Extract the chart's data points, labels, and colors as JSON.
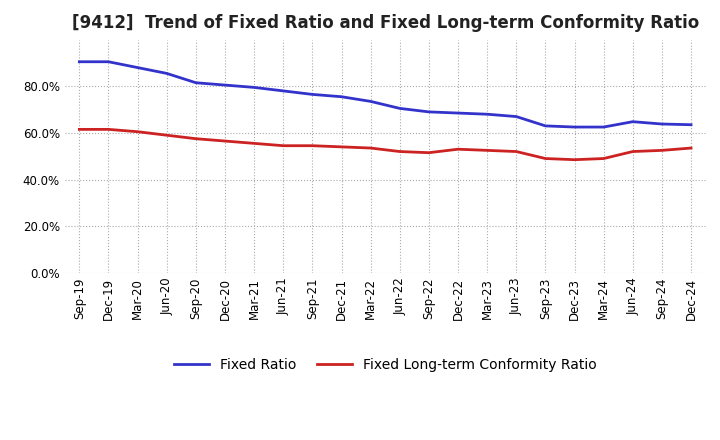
{
  "title": "[9412]  Trend of Fixed Ratio and Fixed Long-term Conformity Ratio",
  "x_labels": [
    "Sep-19",
    "Dec-19",
    "Mar-20",
    "Jun-20",
    "Sep-20",
    "Dec-20",
    "Mar-21",
    "Jun-21",
    "Sep-21",
    "Dec-21",
    "Mar-22",
    "Jun-22",
    "Sep-22",
    "Dec-22",
    "Mar-23",
    "Jun-23",
    "Sep-23",
    "Dec-23",
    "Mar-24",
    "Jun-24",
    "Sep-24",
    "Dec-24"
  ],
  "fixed_ratio": [
    0.905,
    0.905,
    0.88,
    0.855,
    0.815,
    0.805,
    0.795,
    0.78,
    0.765,
    0.755,
    0.735,
    0.705,
    0.69,
    0.685,
    0.68,
    0.67,
    0.63,
    0.625,
    0.625,
    0.648,
    0.638,
    0.635
  ],
  "fixed_lt_ratio": [
    0.615,
    0.615,
    0.605,
    0.59,
    0.575,
    0.565,
    0.555,
    0.545,
    0.545,
    0.54,
    0.535,
    0.52,
    0.515,
    0.53,
    0.525,
    0.52,
    0.49,
    0.485,
    0.49,
    0.52,
    0.525,
    0.535
  ],
  "fixed_ratio_color": "#3333cc",
  "fixed_lt_ratio_color": "#cc2222",
  "ylim": [
    0.0,
    1.0
  ],
  "yticks": [
    0.0,
    0.2,
    0.4,
    0.6,
    0.8
  ],
  "background_color": "#ffffff",
  "grid_color": "#aaaaaa",
  "title_fontsize": 12,
  "legend_fontsize": 10,
  "tick_fontsize": 8.5,
  "linewidth": 2.0
}
